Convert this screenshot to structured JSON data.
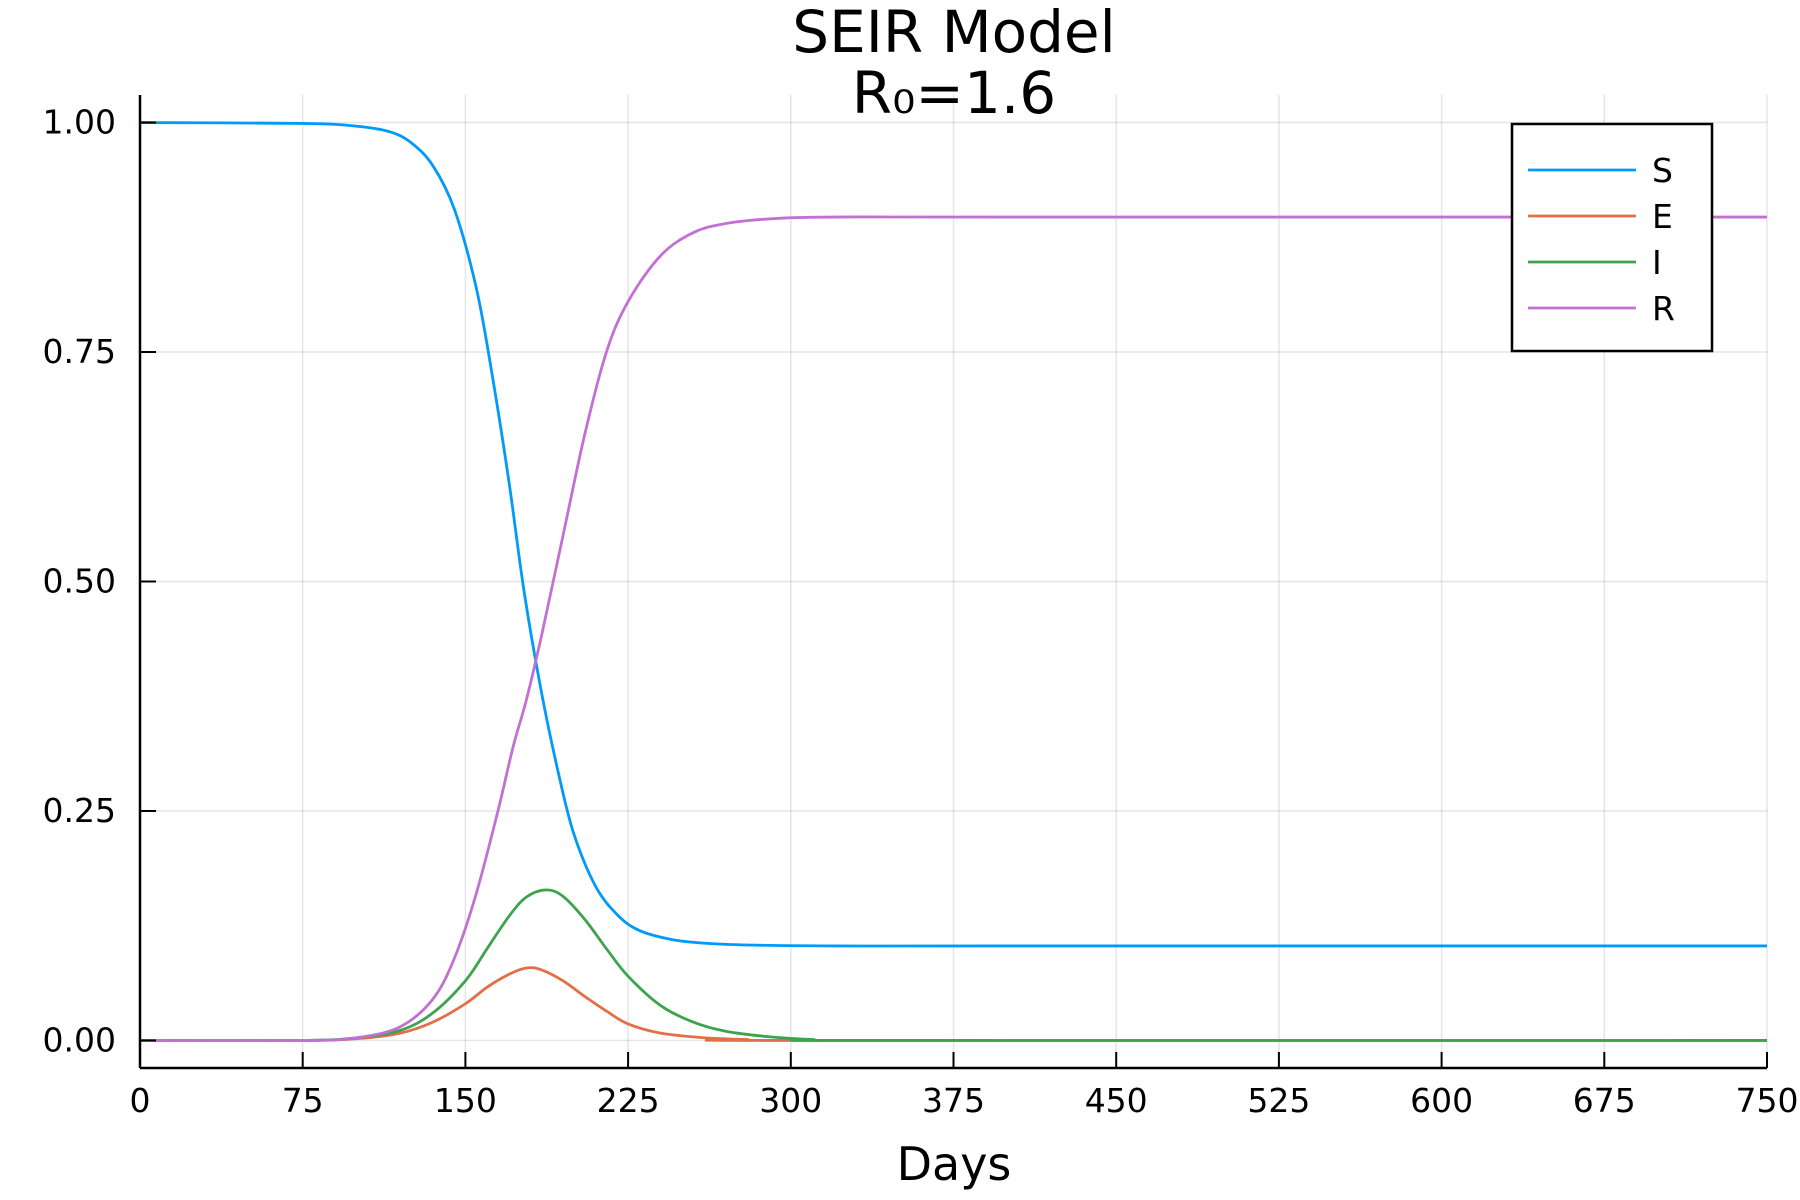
{
  "chart_data": {
    "type": "line",
    "title": "SEIR Model",
    "subtitle": "R₀=1.6",
    "xlabel": "Days",
    "ylabel": "",
    "xlim": [
      0,
      750
    ],
    "ylim": [
      -0.03,
      1.03
    ],
    "xticks": [
      0,
      75,
      150,
      225,
      300,
      375,
      450,
      525,
      600,
      675,
      750
    ],
    "xtick_labels": [
      "0",
      "75",
      "150",
      "225",
      "300",
      "375",
      "450",
      "525",
      "600",
      "675",
      "750"
    ],
    "yticks": [
      0,
      0.25,
      0.5,
      0.75,
      1.0
    ],
    "ytick_labels": [
      "0.00",
      "0.25",
      "0.50",
      "0.75",
      "1.00"
    ],
    "grid": true,
    "legend_position": "top-right",
    "series": [
      {
        "name": "S",
        "color": "#009af9",
        "points": [
          [
            0,
            1.0
          ],
          [
            75,
            0.999
          ],
          [
            100,
            0.996
          ],
          [
            115,
            0.99
          ],
          [
            125,
            0.978
          ],
          [
            135,
            0.953
          ],
          [
            145,
            0.905
          ],
          [
            155,
            0.82
          ],
          [
            162,
            0.73
          ],
          [
            170,
            0.61
          ],
          [
            177,
            0.49
          ],
          [
            185,
            0.38
          ],
          [
            193,
            0.29
          ],
          [
            200,
            0.225
          ],
          [
            210,
            0.168
          ],
          [
            220,
            0.137
          ],
          [
            230,
            0.12
          ],
          [
            245,
            0.11
          ],
          [
            260,
            0.106
          ],
          [
            280,
            0.104
          ],
          [
            320,
            0.103
          ],
          [
            400,
            0.103
          ],
          [
            750,
            0.103
          ]
        ]
      },
      {
        "name": "E",
        "color": "#e26f46",
        "points": [
          [
            0,
            0.0
          ],
          [
            75,
            0.0
          ],
          [
            100,
            0.002
          ],
          [
            120,
            0.008
          ],
          [
            135,
            0.02
          ],
          [
            150,
            0.04
          ],
          [
            160,
            0.058
          ],
          [
            170,
            0.072
          ],
          [
            178,
            0.079
          ],
          [
            185,
            0.077
          ],
          [
            195,
            0.065
          ],
          [
            205,
            0.048
          ],
          [
            215,
            0.032
          ],
          [
            225,
            0.018
          ],
          [
            240,
            0.008
          ],
          [
            260,
            0.003
          ],
          [
            280,
            0.001
          ],
          [
            300,
            0.0
          ],
          [
            750,
            0.0
          ]
        ]
      },
      {
        "name": "I",
        "color": "#3da44d",
        "points": [
          [
            0,
            0.0
          ],
          [
            75,
            0.0
          ],
          [
            100,
            0.003
          ],
          [
            120,
            0.011
          ],
          [
            135,
            0.03
          ],
          [
            150,
            0.065
          ],
          [
            160,
            0.1
          ],
          [
            170,
            0.135
          ],
          [
            178,
            0.156
          ],
          [
            187,
            0.164
          ],
          [
            195,
            0.157
          ],
          [
            205,
            0.132
          ],
          [
            215,
            0.1
          ],
          [
            225,
            0.07
          ],
          [
            240,
            0.038
          ],
          [
            255,
            0.02
          ],
          [
            270,
            0.01
          ],
          [
            290,
            0.004
          ],
          [
            310,
            0.001
          ],
          [
            340,
            0.0
          ],
          [
            750,
            0.0
          ]
        ]
      },
      {
        "name": "R",
        "color": "#c271d2",
        "points": [
          [
            0,
            0.0
          ],
          [
            75,
            0.0
          ],
          [
            100,
            0.003
          ],
          [
            120,
            0.015
          ],
          [
            135,
            0.045
          ],
          [
            145,
            0.09
          ],
          [
            155,
            0.16
          ],
          [
            165,
            0.25
          ],
          [
            172,
            0.32
          ],
          [
            178,
            0.37
          ],
          [
            185,
            0.44
          ],
          [
            195,
            0.55
          ],
          [
            205,
            0.66
          ],
          [
            215,
            0.75
          ],
          [
            225,
            0.805
          ],
          [
            240,
            0.855
          ],
          [
            255,
            0.88
          ],
          [
            270,
            0.89
          ],
          [
            290,
            0.895
          ],
          [
            320,
            0.897
          ],
          [
            400,
            0.897
          ],
          [
            750,
            0.897
          ]
        ]
      }
    ]
  }
}
